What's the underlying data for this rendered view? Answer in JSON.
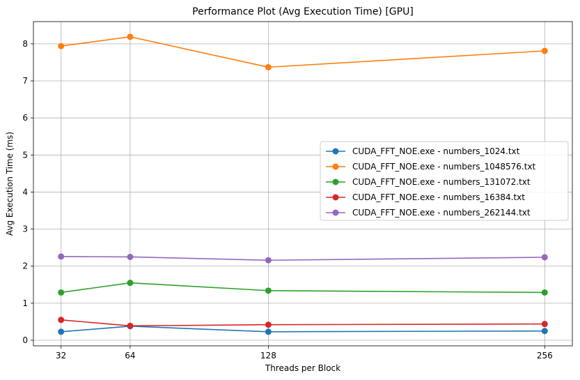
{
  "chart_data": {
    "type": "line",
    "title": "Performance Plot (Avg Execution Time) [GPU]",
    "xlabel": "Threads per Block",
    "ylabel": "Avg Execution Time (ms)",
    "x": [
      32,
      64,
      128,
      256
    ],
    "x_ticks": [
      "32",
      "64",
      "128",
      "256"
    ],
    "xlim": [
      19.2,
      268.8
    ],
    "ylim": [
      -0.15,
      8.6
    ],
    "y_ticks": [
      0,
      1,
      2,
      3,
      4,
      5,
      6,
      7,
      8
    ],
    "y_tick_labels": [
      "0",
      "1",
      "2",
      "3",
      "4",
      "5",
      "6",
      "7",
      "8"
    ],
    "grid": true,
    "legend_position": "center-right",
    "series": [
      {
        "name": "CUDA_FFT_NOE.exe - numbers_1024.txt",
        "color": "#1f77b4",
        "values": [
          0.23,
          0.38,
          0.23,
          0.25
        ]
      },
      {
        "name": "CUDA_FFT_NOE.exe - numbers_1048576.txt",
        "color": "#ff7f0e",
        "values": [
          7.94,
          8.19,
          7.37,
          7.81
        ]
      },
      {
        "name": "CUDA_FFT_NOE.exe - numbers_131072.txt",
        "color": "#2ca02c",
        "values": [
          1.29,
          1.55,
          1.34,
          1.29
        ]
      },
      {
        "name": "CUDA_FFT_NOE.exe - numbers_16384.txt",
        "color": "#d62728",
        "values": [
          0.55,
          0.39,
          0.42,
          0.44
        ]
      },
      {
        "name": "CUDA_FFT_NOE.exe - numbers_262144.txt",
        "color": "#9467bd",
        "values": [
          2.26,
          2.25,
          2.16,
          2.24
        ]
      }
    ]
  }
}
